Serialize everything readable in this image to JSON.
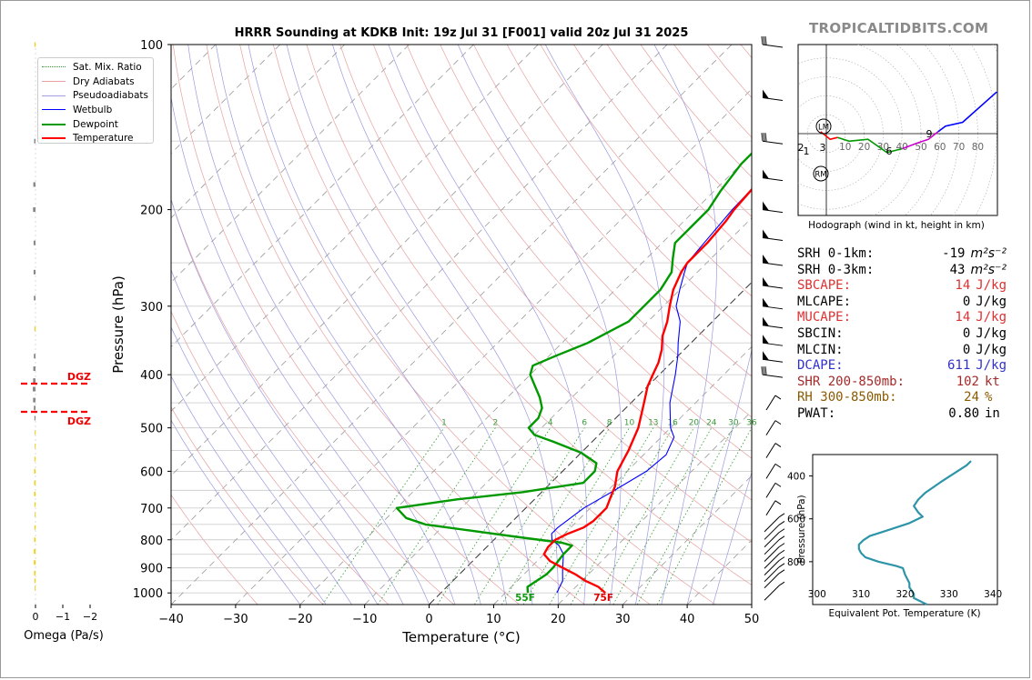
{
  "chart_data": [
    {
      "type": "line",
      "title": "HRRR Sounding at KDKB Init: 19z Jul 31 [F001] valid 20z Jul 31 2025",
      "xlabel": "Temperature (°C)",
      "ylabel": "Pressure (hPa)",
      "xlim": [
        -40,
        50
      ],
      "ylim": [
        1050,
        100
      ],
      "y_scale": "log",
      "x_ticks": [
        -40,
        -30,
        -20,
        -10,
        0,
        10,
        20,
        30,
        40,
        50
      ],
      "y_ticks": [
        100,
        200,
        300,
        400,
        500,
        600,
        700,
        800,
        900,
        1000
      ],
      "legend": [
        "Sat. Mix. Ratio",
        "Dry Adiabats",
        "Pseudoadiabats",
        "Wetbulb",
        "Dewpoint",
        "Temperature"
      ],
      "legend_position": "top-left",
      "mixing_ratio_labels": [
        "1",
        "2",
        "4",
        "6",
        "8",
        "10",
        "13",
        "16",
        "20",
        "24",
        "30",
        "36"
      ],
      "surface_labels": {
        "dewpoint": "55F",
        "temperature": "75F"
      },
      "series": [
        {
          "name": "Temperature",
          "color": "#ff0000",
          "points": [
            [
              1000,
              25.5
            ],
            [
              975,
              23.5
            ],
            [
              950,
              20.5
            ],
            [
              925,
              18
            ],
            [
              900,
              15
            ],
            [
              875,
              12
            ],
            [
              850,
              10
            ],
            [
              825,
              9.5
            ],
            [
              800,
              9.5
            ],
            [
              780,
              10.5
            ],
            [
              760,
              12
            ],
            [
              740,
              12.5
            ],
            [
              700,
              12.5
            ],
            [
              670,
              11.5
            ],
            [
              640,
              10.5
            ],
            [
              600,
              8.5
            ],
            [
              550,
              7
            ],
            [
              500,
              5
            ],
            [
              450,
              2
            ],
            [
              420,
              0
            ],
            [
              400,
              -1
            ],
            [
              380,
              -2
            ],
            [
              360,
              -3.5
            ],
            [
              340,
              -5.5
            ],
            [
              320,
              -7
            ],
            [
              300,
              -9
            ],
            [
              280,
              -11
            ],
            [
              260,
              -12.5
            ],
            [
              250,
              -13
            ],
            [
              230,
              -13
            ],
            [
              210,
              -13.5
            ],
            [
              200,
              -14
            ],
            [
              180,
              -14.5
            ],
            [
              165,
              -15
            ],
            [
              150,
              -14
            ],
            [
              135,
              -13.5
            ],
            [
              125,
              -13
            ],
            [
              115,
              -11.5
            ],
            [
              100,
              -10
            ]
          ]
        },
        {
          "name": "Dewpoint",
          "color": "#009900",
          "points": [
            [
              1000,
              13.5
            ],
            [
              975,
              12.5
            ],
            [
              950,
              13
            ],
            [
              925,
              13.5
            ],
            [
              900,
              13.5
            ],
            [
              850,
              13
            ],
            [
              820,
              13
            ],
            [
              810,
              11
            ],
            [
              790,
              3
            ],
            [
              770,
              -5
            ],
            [
              750,
              -13
            ],
            [
              730,
              -17
            ],
            [
              700,
              -20
            ],
            [
              675,
              -12
            ],
            [
              655,
              -3
            ],
            [
              630,
              5
            ],
            [
              600,
              5
            ],
            [
              580,
              4
            ],
            [
              555,
              0
            ],
            [
              530,
              -6
            ],
            [
              515,
              -10
            ],
            [
              500,
              -12
            ],
            [
              480,
              -12
            ],
            [
              460,
              -13
            ],
            [
              440,
              -15
            ],
            [
              400,
              -20
            ],
            [
              385,
              -21
            ],
            [
              370,
              -19
            ],
            [
              350,
              -16
            ],
            [
              320,
              -13
            ],
            [
              300,
              -13
            ],
            [
              280,
              -13
            ],
            [
              260,
              -14
            ],
            [
              245,
              -16
            ],
            [
              230,
              -18
            ],
            [
              210,
              -18
            ],
            [
              200,
              -18
            ],
            [
              185,
              -19
            ],
            [
              165,
              -20
            ],
            [
              150,
              -20
            ],
            [
              135,
              -19
            ],
            [
              120,
              -18
            ],
            [
              100,
              -16
            ]
          ]
        },
        {
          "name": "Wetbulb",
          "color": "#0000ff",
          "points": [
            [
              1000,
              18
            ],
            [
              975,
              17.5
            ],
            [
              950,
              17
            ],
            [
              925,
              16
            ],
            [
              900,
              15
            ],
            [
              850,
              13
            ],
            [
              820,
              11
            ],
            [
              800,
              9
            ],
            [
              780,
              8
            ],
            [
              760,
              8
            ],
            [
              700,
              9
            ],
            [
              650,
              11
            ],
            [
              600,
              13
            ],
            [
              560,
              13.5
            ],
            [
              520,
              12
            ],
            [
              500,
              10
            ],
            [
              450,
              6
            ],
            [
              400,
              2.5
            ],
            [
              370,
              0
            ],
            [
              350,
              -2
            ],
            [
              320,
              -5
            ],
            [
              300,
              -8
            ],
            [
              280,
              -10
            ],
            [
              260,
              -12
            ],
            [
              250,
              -13
            ],
            [
              230,
              -13.5
            ],
            [
              210,
              -14
            ],
            [
              200,
              -14.3
            ],
            [
              180,
              -14.5
            ]
          ]
        }
      ]
    },
    {
      "type": "line",
      "title": "Hodograph (wind in kt, height in km)",
      "ring_labels": [
        "10",
        "20",
        "30",
        "40",
        "50",
        "60",
        "70",
        "80"
      ],
      "height_labels": [
        "1",
        "2",
        "3",
        "6",
        "9"
      ],
      "markers": [
        "LM",
        "RM"
      ],
      "series": [
        {
          "color": "#ff0000",
          "points": [
            [
              -3,
              1
            ],
            [
              2,
              -3
            ],
            [
              6,
              -2
            ]
          ]
        },
        {
          "color": "#009900",
          "points": [
            [
              6,
              -2
            ],
            [
              12,
              -4
            ],
            [
              22,
              -3
            ],
            [
              32,
              -10
            ],
            [
              40,
              -8
            ]
          ]
        },
        {
          "color": "#cc00cc",
          "points": [
            [
              40,
              -8
            ],
            [
              48,
              -5
            ],
            [
              54,
              -3
            ],
            [
              59,
              1
            ]
          ]
        },
        {
          "color": "#0000ff",
          "points": [
            [
              59,
              1
            ],
            [
              63,
              4
            ],
            [
              72,
              6
            ],
            [
              90,
              22
            ]
          ]
        }
      ]
    },
    {
      "type": "line",
      "xlabel": "Equivalent Pot. Temperature (K)",
      "ylabel": "Pressure (hPa)",
      "xlim": [
        299,
        341
      ],
      "ylim": [
        1000,
        300
      ],
      "x_ticks": [
        300,
        310,
        320,
        330,
        340
      ],
      "y_ticks": [
        400,
        600,
        800
      ],
      "series": [
        {
          "color": "#2e95a8",
          "points": [
            [
              1000,
              325
            ],
            [
              970,
              322
            ],
            [
              950,
              322
            ],
            [
              920,
              321
            ],
            [
              900,
              321
            ],
            [
              880,
              320.5
            ],
            [
              860,
              320
            ],
            [
              830,
              319.5
            ],
            [
              820,
              318
            ],
            [
              800,
              314
            ],
            [
              780,
              311
            ],
            [
              760,
              310
            ],
            [
              740,
              309.5
            ],
            [
              720,
              309.5
            ],
            [
              700,
              310.5
            ],
            [
              680,
              312
            ],
            [
              660,
              315
            ],
            [
              620,
              321
            ],
            [
              590,
              324
            ],
            [
              570,
              323
            ],
            [
              540,
              322
            ],
            [
              510,
              323
            ],
            [
              480,
              324.5
            ],
            [
              430,
              328
            ],
            [
              390,
              331
            ],
            [
              350,
              334
            ],
            [
              330,
              335
            ]
          ]
        }
      ]
    },
    {
      "type": "bar",
      "xlabel": "Omega (Pa/s)",
      "x_ticks": [
        "0",
        "−1",
        "−2"
      ],
      "dgz_label": "DGZ"
    }
  ],
  "parameters": [
    {
      "label": "SRH 0-1km:",
      "value": "-19",
      "unit": "m²s⁻²",
      "color": "#000000"
    },
    {
      "label": "SRH 0-3km:",
      "value": "43",
      "unit": "m²s⁻²",
      "color": "#000000"
    },
    {
      "label": "SBCAPE:",
      "value": "14",
      "unit": "J/kg",
      "color": "#e03030"
    },
    {
      "label": "MLCAPE:",
      "value": "0",
      "unit": "J/kg",
      "color": "#000000"
    },
    {
      "label": "MUCAPE:",
      "value": "14",
      "unit": "J/kg",
      "color": "#e03030"
    },
    {
      "label": "SBCIN:",
      "value": "0",
      "unit": "J/kg",
      "color": "#000000"
    },
    {
      "label": "MLCIN:",
      "value": "0",
      "unit": "J/kg",
      "color": "#000000"
    },
    {
      "label": "DCAPE:",
      "value": "611",
      "unit": "J/kg",
      "color": "#3030d0"
    },
    {
      "label": "SHR 200-850mb:",
      "value": "102",
      "unit": "kt",
      "color": "#a52a2a"
    },
    {
      "label": "RH 300-850mb:",
      "value": "24",
      "unit": "%",
      "color": "#8b5a00"
    },
    {
      "label": "PWAT:",
      "value": "0.80",
      "unit": "in",
      "color": "#000000"
    }
  ],
  "brand": "TROPICALTIDBITS.COM"
}
